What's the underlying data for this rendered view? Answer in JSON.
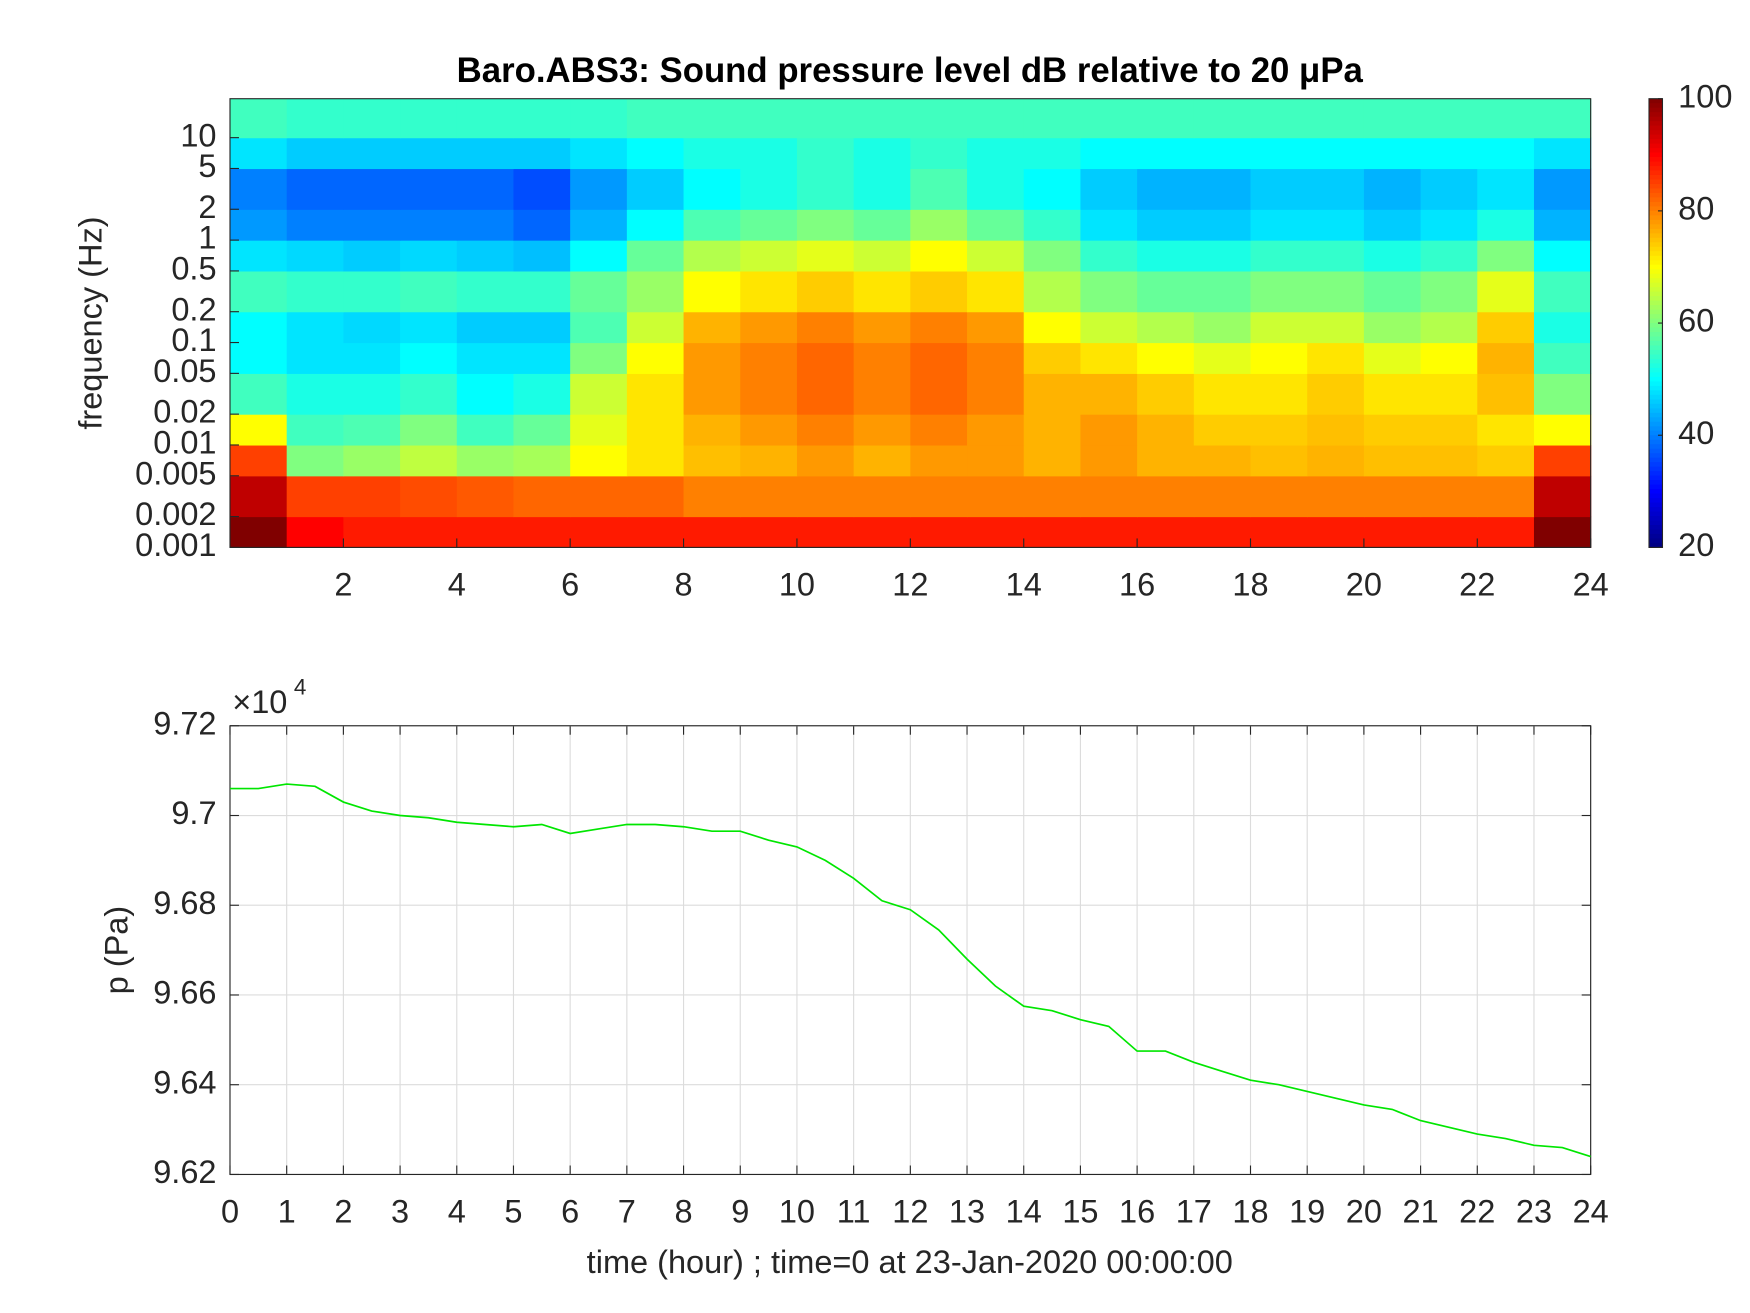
{
  "chart_data": [
    {
      "type": "heatmap",
      "title": "Baro.ABS3: Sound pressure level dB relative to 20 μPa",
      "y_label": "frequency (Hz)",
      "x_edges": [
        0,
        1,
        2,
        3,
        4,
        5,
        6,
        7,
        8,
        9,
        10,
        11,
        12,
        13,
        14,
        15,
        16,
        17,
        18,
        19,
        20,
        21,
        22,
        23,
        24
      ],
      "y_edges": [
        0.001,
        0.002,
        0.005,
        0.01,
        0.02,
        0.05,
        0.1,
        0.2,
        0.5,
        1,
        2,
        5,
        10,
        24
      ],
      "values": [
        [
          100,
          90,
          88,
          88,
          88,
          88,
          88,
          88,
          88,
          88,
          88,
          88,
          88,
          88,
          88,
          88,
          88,
          88,
          88,
          88,
          88,
          88,
          88,
          100
        ],
        [
          95,
          85,
          85,
          84,
          83,
          82,
          82,
          82,
          80,
          80,
          80,
          80,
          80,
          80,
          80,
          80,
          80,
          80,
          80,
          80,
          80,
          80,
          80,
          95
        ],
        [
          85,
          60,
          62,
          65,
          62,
          63,
          70,
          72,
          75,
          76,
          78,
          76,
          78,
          78,
          76,
          78,
          76,
          76,
          75,
          76,
          75,
          75,
          74,
          85
        ],
        [
          70,
          55,
          56,
          60,
          55,
          58,
          68,
          72,
          76,
          78,
          80,
          78,
          80,
          78,
          76,
          78,
          76,
          74,
          74,
          75,
          74,
          74,
          72,
          70
        ],
        [
          55,
          52,
          52,
          54,
          50,
          52,
          66,
          72,
          78,
          80,
          82,
          80,
          82,
          80,
          76,
          76,
          74,
          72,
          72,
          74,
          72,
          72,
          75,
          60
        ],
        [
          50,
          48,
          48,
          50,
          48,
          48,
          60,
          70,
          78,
          80,
          82,
          80,
          82,
          80,
          74,
          72,
          70,
          68,
          70,
          72,
          68,
          70,
          76,
          55
        ],
        [
          50,
          48,
          47,
          48,
          46,
          46,
          56,
          66,
          76,
          78,
          80,
          78,
          80,
          78,
          70,
          66,
          64,
          62,
          66,
          66,
          62,
          64,
          74,
          52
        ],
        [
          55,
          54,
          54,
          55,
          54,
          54,
          58,
          62,
          70,
          72,
          74,
          72,
          74,
          72,
          64,
          60,
          58,
          58,
          60,
          60,
          58,
          60,
          68,
          55
        ],
        [
          48,
          47,
          46,
          47,
          46,
          45,
          50,
          58,
          64,
          66,
          68,
          66,
          70,
          66,
          60,
          54,
          52,
          52,
          54,
          54,
          52,
          54,
          60,
          50
        ],
        [
          42,
          40,
          40,
          40,
          40,
          38,
          44,
          50,
          56,
          58,
          60,
          58,
          62,
          58,
          54,
          48,
          46,
          46,
          48,
          48,
          46,
          48,
          52,
          44
        ],
        [
          40,
          38,
          38,
          38,
          38,
          36,
          42,
          46,
          50,
          52,
          54,
          52,
          56,
          52,
          50,
          46,
          44,
          44,
          46,
          46,
          44,
          46,
          48,
          42
        ],
        [
          48,
          46,
          46,
          46,
          46,
          46,
          48,
          50,
          52,
          52,
          54,
          52,
          54,
          52,
          52,
          50,
          50,
          50,
          50,
          50,
          50,
          50,
          50,
          48
        ],
        [
          55,
          54,
          54,
          54,
          54,
          54,
          54,
          55,
          55,
          55,
          55,
          55,
          55,
          55,
          55,
          55,
          55,
          55,
          55,
          55,
          55,
          55,
          55,
          55
        ]
      ],
      "xlim": [
        0,
        24
      ],
      "xticks": [
        2,
        4,
        6,
        8,
        10,
        12,
        14,
        16,
        18,
        20,
        22,
        24
      ],
      "ylim": [
        0.001,
        24
      ],
      "log_y": true,
      "yticks": [
        0.001,
        0.002,
        0.005,
        0.01,
        0.02,
        0.05,
        0.1,
        0.2,
        0.5,
        1,
        2,
        5,
        10
      ],
      "colormap": "jet",
      "clim": [
        20,
        100
      ],
      "cticks": [
        20,
        40,
        60,
        80,
        100
      ]
    },
    {
      "type": "line",
      "x_label": "time (hour) ; time=0 at 23-Jan-2020 00:00:00",
      "y_label": "p (Pa)",
      "axis_exponent": {
        "base": "×10",
        "power": "4"
      },
      "x": [
        0,
        0.5,
        1,
        1.5,
        2,
        2.5,
        3,
        3.5,
        4,
        4.5,
        5,
        5.5,
        6,
        6.5,
        7,
        7.5,
        8,
        8.5,
        9,
        9.5,
        10,
        10.5,
        11,
        11.5,
        12,
        12.5,
        13,
        13.5,
        14,
        14.5,
        15,
        15.5,
        16,
        16.5,
        17,
        17.5,
        18,
        18.5,
        19,
        19.5,
        20,
        20.5,
        21,
        21.5,
        22,
        22.5,
        23,
        23.5,
        24
      ],
      "series": [
        {
          "color": "#00e600",
          "values": [
            97060,
            97060,
            97070,
            97065,
            97030,
            97010,
            97000,
            96995,
            96985,
            96980,
            96975,
            96980,
            96960,
            96970,
            96980,
            96980,
            96975,
            96965,
            96965,
            96945,
            96930,
            96900,
            96860,
            96810,
            96790,
            96745,
            96680,
            96620,
            96575,
            96565,
            96545,
            96530,
            96475,
            96475,
            96450,
            96430,
            96410,
            96400,
            96385,
            96370,
            96355,
            96345,
            96320,
            96305,
            96290,
            96280,
            96265,
            96260,
            96240
          ]
        }
      ],
      "xlim": [
        0,
        24
      ],
      "xticks": [
        0,
        1,
        2,
        3,
        4,
        5,
        6,
        7,
        8,
        9,
        10,
        11,
        12,
        13,
        14,
        15,
        16,
        17,
        18,
        19,
        20,
        21,
        22,
        23,
        24
      ],
      "ylim": [
        96200,
        97200
      ],
      "yticks": [
        {
          "value": 96200,
          "label": "9.62"
        },
        {
          "value": 96400,
          "label": "9.64"
        },
        {
          "value": 96600,
          "label": "9.66"
        },
        {
          "value": 96800,
          "label": "9.68"
        },
        {
          "value": 97000,
          "label": "9.7"
        },
        {
          "value": 97200,
          "label": "9.72"
        }
      ],
      "grid": true
    }
  ]
}
